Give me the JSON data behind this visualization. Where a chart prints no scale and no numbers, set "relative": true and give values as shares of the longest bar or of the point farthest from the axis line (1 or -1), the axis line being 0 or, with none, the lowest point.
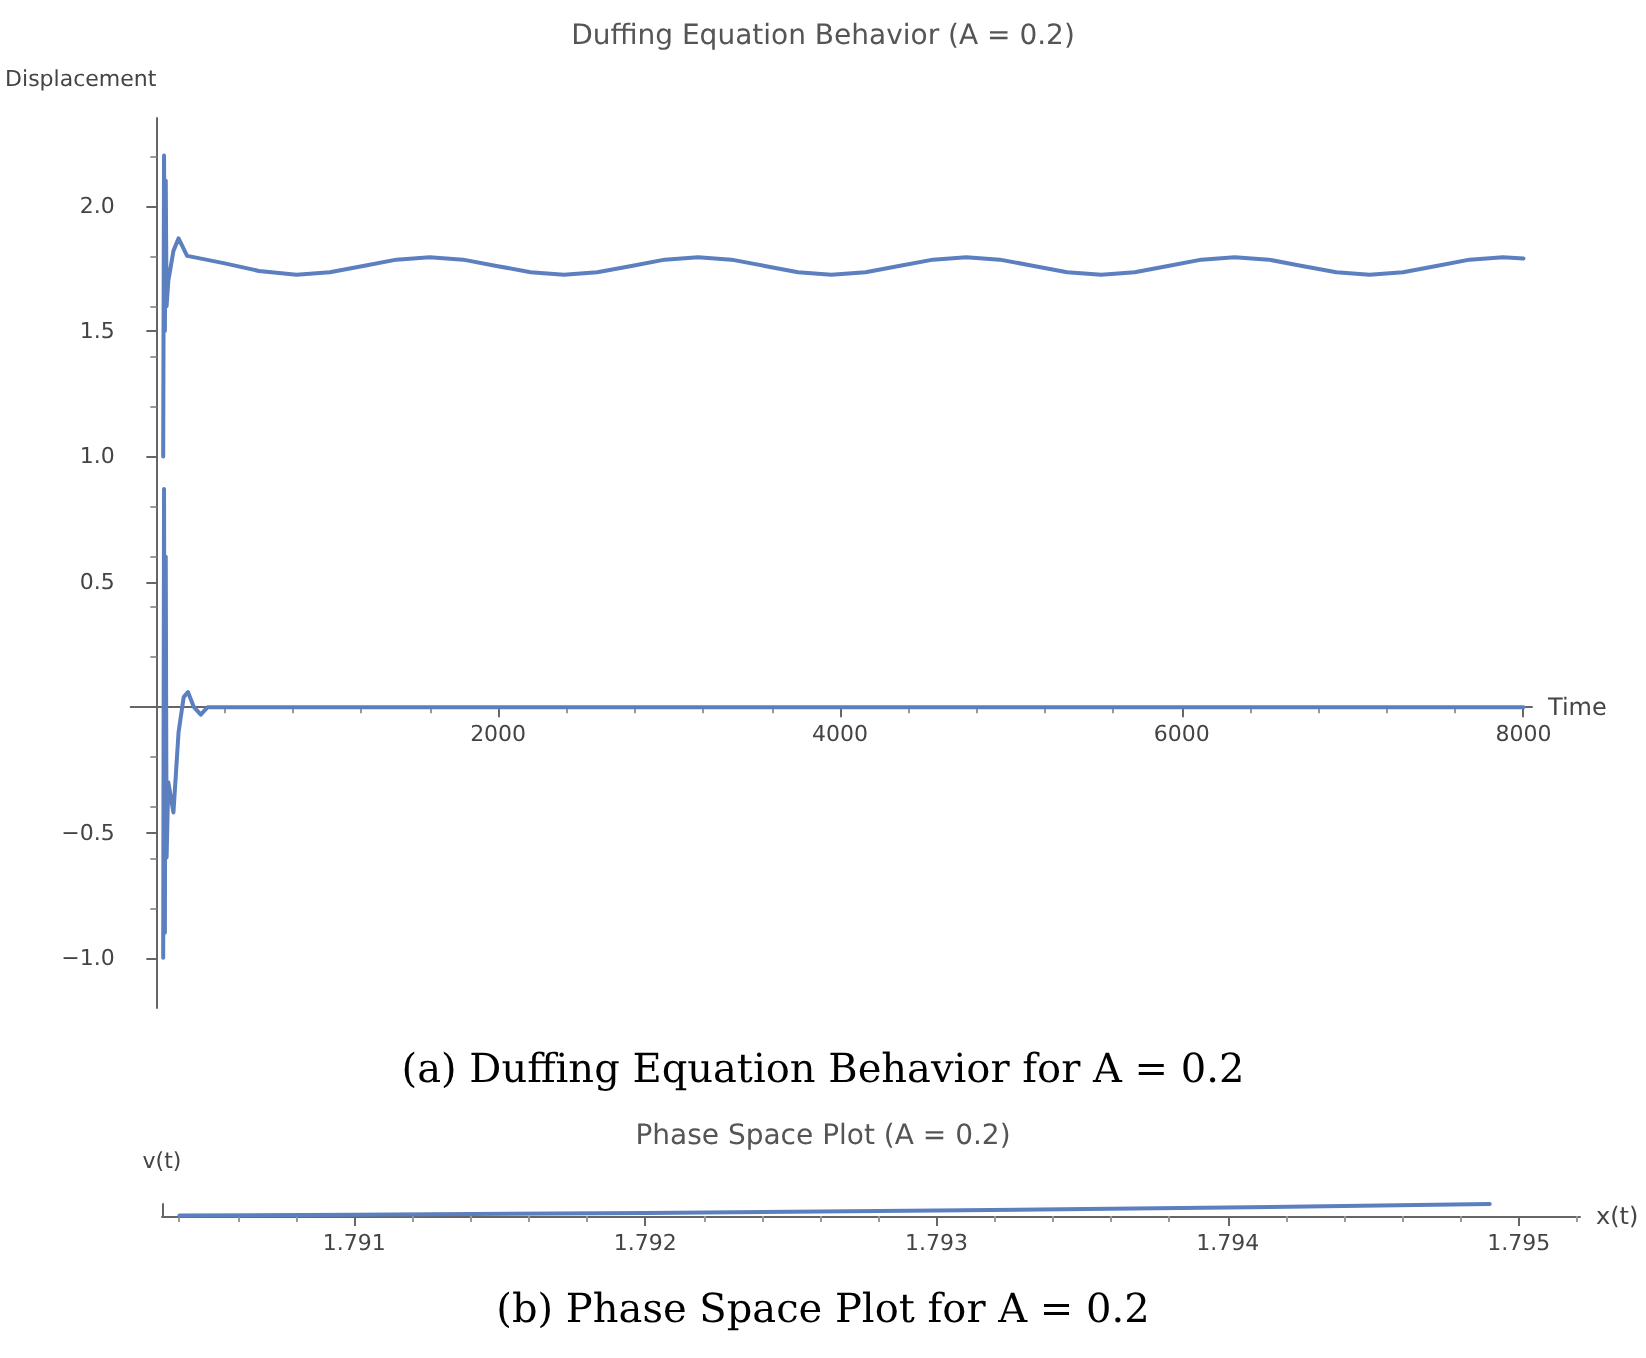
{
  "chart_data": [
    {
      "type": "line",
      "title": "Duffing Equation Behavior (A = 0.2)",
      "xlabel": "Time",
      "ylabel": "Displacement",
      "annotations": [
        "(a) Duffing Equation Behavior for A = 0.2"
      ],
      "xlim": [
        -150,
        8050
      ],
      "ylim": [
        -1.2,
        2.35
      ],
      "xticks": [
        2000,
        4000,
        6000,
        8000
      ],
      "yticks": [
        {
          "value": -1,
          "label": "−1.0"
        },
        {
          "value": -0.5,
          "label": "−0.5"
        },
        {
          "value": 0.5,
          "label": "0.5"
        },
        {
          "value": 1,
          "label": "1.0"
        },
        {
          "value": 1.5,
          "label": "1.5"
        },
        {
          "value": 2,
          "label": "2.0"
        }
      ],
      "grid": false,
      "marker": "none",
      "line_style": "solid",
      "series": [
        {
          "color": "#5b7fbf",
          "x": [
            40,
            45,
            50,
            55,
            60,
            70,
            100,
            130,
            180,
            255,
            400,
            600,
            820,
            1015,
            1210,
            1405,
            1600,
            1795,
            1990,
            2190,
            2385,
            2580,
            2780,
            2975,
            3170,
            3365,
            3560,
            3755,
            3950,
            4150,
            4345,
            4545,
            4740,
            4935,
            5135,
            5330,
            5530,
            5725,
            5920,
            6115,
            6310,
            6510,
            6705,
            6905,
            7100,
            7295,
            7490,
            7685,
            7880,
            8000
          ],
          "values": [
            1.0,
            2.2,
            1.5,
            2.1,
            1.6,
            1.7,
            1.82,
            1.87,
            1.8,
            1.79,
            1.77,
            1.74,
            1.725,
            1.735,
            1.76,
            1.785,
            1.795,
            1.785,
            1.76,
            1.735,
            1.725,
            1.735,
            1.76,
            1.785,
            1.795,
            1.785,
            1.76,
            1.735,
            1.725,
            1.735,
            1.76,
            1.785,
            1.795,
            1.785,
            1.76,
            1.735,
            1.725,
            1.735,
            1.76,
            1.785,
            1.795,
            1.785,
            1.76,
            1.735,
            1.725,
            1.735,
            1.76,
            1.785,
            1.795,
            1.79
          ]
        },
        {
          "color": "#5b7fbf",
          "x": [
            40,
            45,
            50,
            55,
            60,
            70,
            100,
            130,
            160,
            185,
            220,
            260,
            300,
            600,
            8000
          ],
          "values": [
            -1.0,
            0.87,
            -0.9,
            0.6,
            -0.6,
            -0.3,
            -0.42,
            -0.1,
            0.04,
            0.06,
            0.0,
            -0.03,
            0.0,
            0.0,
            0.0
          ]
        }
      ]
    },
    {
      "type": "line",
      "title": "Phase Space Plot (A = 0.2)",
      "xlabel": "x(t)",
      "ylabel": "v(t)",
      "annotations": [
        "(b) Phase Space Plot for A = 0.2"
      ],
      "relative": true,
      "tick_labels": "x",
      "xlim": [
        1.79034,
        1.79521
      ],
      "xticks": [
        1.791,
        1.792,
        1.793,
        1.794,
        1.795
      ],
      "grid": false,
      "marker": "none",
      "line_style": "solid",
      "series": [
        {
          "color": "#5b7fbf",
          "x": [
            1.7904,
            1.791,
            1.792,
            1.793,
            1.794,
            1.7949
          ],
          "values": [
            0.05,
            0.1,
            0.25,
            0.45,
            0.7,
            1.0
          ]
        }
      ]
    }
  ]
}
